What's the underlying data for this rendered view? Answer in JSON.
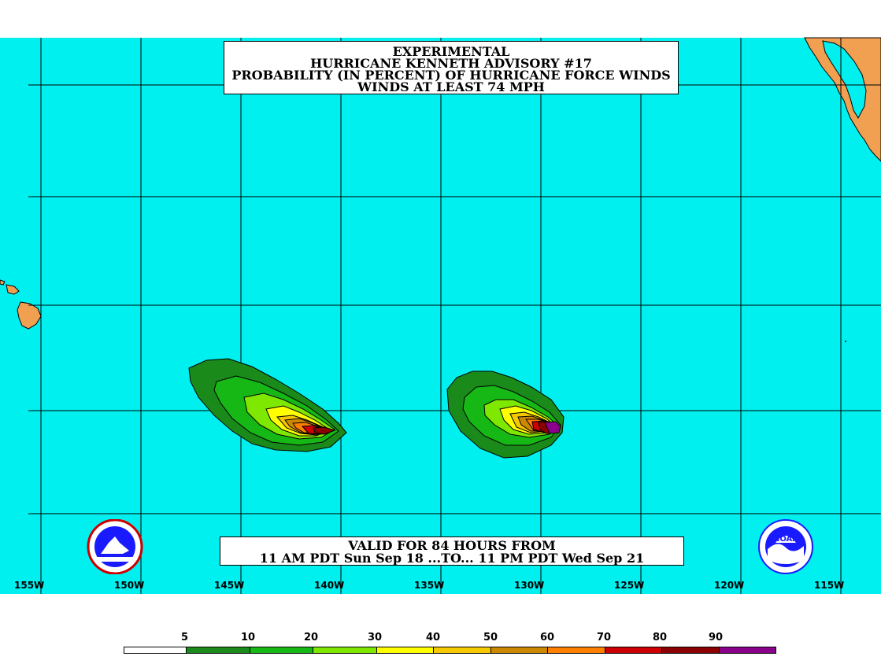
{
  "title": {
    "line1": "EXPERIMENTAL",
    "line2": "HURRICANE KENNETH ADVISORY #17",
    "line3": "PROBABILITY (IN PERCENT) OF HURRICANE FORCE WINDS",
    "line4": "WINDS AT LEAST 74 MPH"
  },
  "valid": {
    "line1": "VALID FOR 84 HOURS FROM",
    "line2": "11 AM PDT Sun Sep 18 ...TO... 11 PM PDT Wed Sep 21"
  },
  "longitude_labels": [
    "155W",
    "150W",
    "145W",
    "140W",
    "135W",
    "130W",
    "125W",
    "120W",
    "115W"
  ],
  "legend": {
    "labels": [
      "5",
      "10",
      "20",
      "30",
      "40",
      "50",
      "60",
      "70",
      "80",
      "90"
    ],
    "colors": [
      "#ffffff",
      "#1a8a1a",
      "#16b816",
      "#7ee800",
      "#ffff00",
      "#f5c800",
      "#cc8800",
      "#ff7f00",
      "#cc0000",
      "#8b0000",
      "#8b008b"
    ]
  },
  "colors": {
    "ocean": "#00f0f0",
    "land": "#f0a050",
    "grid": "#000000"
  },
  "logos": {
    "left": "nws-logo",
    "right": "noaa-logo",
    "noaa_text": "NOAA"
  }
}
